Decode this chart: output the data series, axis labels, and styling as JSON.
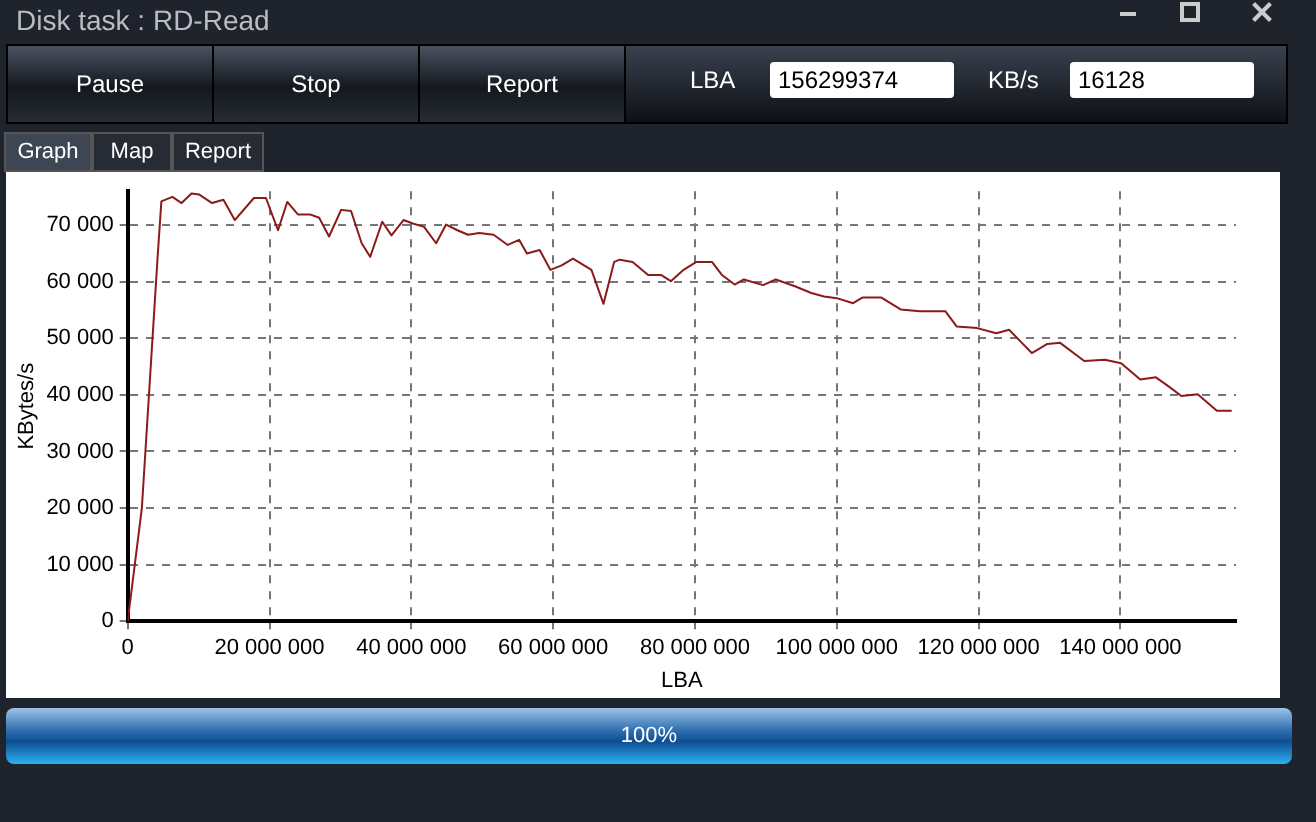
{
  "chart_data": {
    "type": "line",
    "title": "Disk task : RD-Read",
    "xlabel": "LBA",
    "ylabel": "KBytes/s",
    "annotations": [
      "Pause",
      "Stop",
      "Report",
      "LBA",
      "156299374",
      "KB/s",
      "16128",
      "Graph",
      "Map",
      "Report",
      "100%"
    ],
    "x": [
      0,
      2000000,
      4200000,
      4750000,
      6300000,
      7600000,
      9000000,
      10100000,
      11900000,
      13500000,
      15100000,
      17800000,
      19500000,
      21200000,
      22500000,
      24000000,
      25700000,
      27000000,
      28400000,
      30100000,
      31500000,
      33000000,
      34200000,
      35900000,
      37200000,
      38900000,
      40200000,
      41800000,
      43500000,
      44900000,
      46500000,
      48000000,
      49600000,
      51600000,
      53600000,
      55200000,
      56300000,
      58100000,
      59600000,
      61200000,
      62800000,
      65400000,
      67100000,
      68600000,
      69400000,
      71200000,
      73400000,
      75200000,
      76600000,
      78400000,
      80200000,
      82400000,
      83800000,
      85600000,
      86900000,
      89600000,
      91400000,
      94100000,
      96400000,
      98200000,
      100000000,
      102300000,
      103600000,
      106300000,
      109000000,
      111700000,
      115300000,
      116900000,
      119800000,
      122500000,
      124300000,
      127500000,
      129700000,
      131500000,
      134900000,
      137800000,
      140100000,
      142800000,
      145000000,
      146800000,
      148600000,
      150900000,
      153600000,
      155700000
    ],
    "series": [
      {
        "color": "#8b1a1a",
        "values": [
          0,
          20000,
          64000,
          74200,
          75000,
          73900,
          75600,
          75400,
          73900,
          74500,
          70900,
          74800,
          74800,
          69100,
          74100,
          71900,
          71900,
          71300,
          68000,
          72700,
          72500,
          66800,
          64400,
          70600,
          68200,
          70900,
          70300,
          69700,
          66800,
          70100,
          69100,
          68300,
          68600,
          68300,
          66500,
          67400,
          65000,
          65600,
          62100,
          62900,
          64100,
          62100,
          56100,
          63500,
          63900,
          63500,
          61200,
          61200,
          60100,
          62100,
          63500,
          63500,
          61200,
          59500,
          60400,
          59400,
          60400,
          59200,
          58000,
          57400,
          57100,
          56200,
          57200,
          57200,
          55100,
          54800,
          54800,
          52100,
          51800,
          50900,
          51500,
          47400,
          49000,
          49200,
          46000,
          46200,
          45600,
          42700,
          43100,
          41500,
          39800,
          40100,
          37200,
          37200
        ]
      }
    ],
    "xlim": [
      0,
      156300000
    ],
    "ylim": [
      0,
      76000
    ],
    "xticks": [
      {
        "value": 0,
        "label": "0"
      },
      {
        "value": 20000000,
        "label": "20 000 000"
      },
      {
        "value": 40000000,
        "label": "40 000 000"
      },
      {
        "value": 60000000,
        "label": "60 000 000"
      },
      {
        "value": 80000000,
        "label": "80 000 000"
      },
      {
        "value": 100000000,
        "label": "100 000 000"
      },
      {
        "value": 120000000,
        "label": "120 000 000"
      },
      {
        "value": 140000000,
        "label": "140 000 000"
      }
    ],
    "yticks": [
      {
        "value": 0,
        "label": "0"
      },
      {
        "value": 10000,
        "label": "10 000"
      },
      {
        "value": 20000,
        "label": "20 000"
      },
      {
        "value": 30000,
        "label": "30 000"
      },
      {
        "value": 40000,
        "label": "40 000"
      },
      {
        "value": 50000,
        "label": "50 000"
      },
      {
        "value": 60000,
        "label": "60 000"
      },
      {
        "value": 70000,
        "label": "70 000"
      }
    ],
    "grid": true,
    "legend": false,
    "marker": "none",
    "line_style": "solid"
  }
}
